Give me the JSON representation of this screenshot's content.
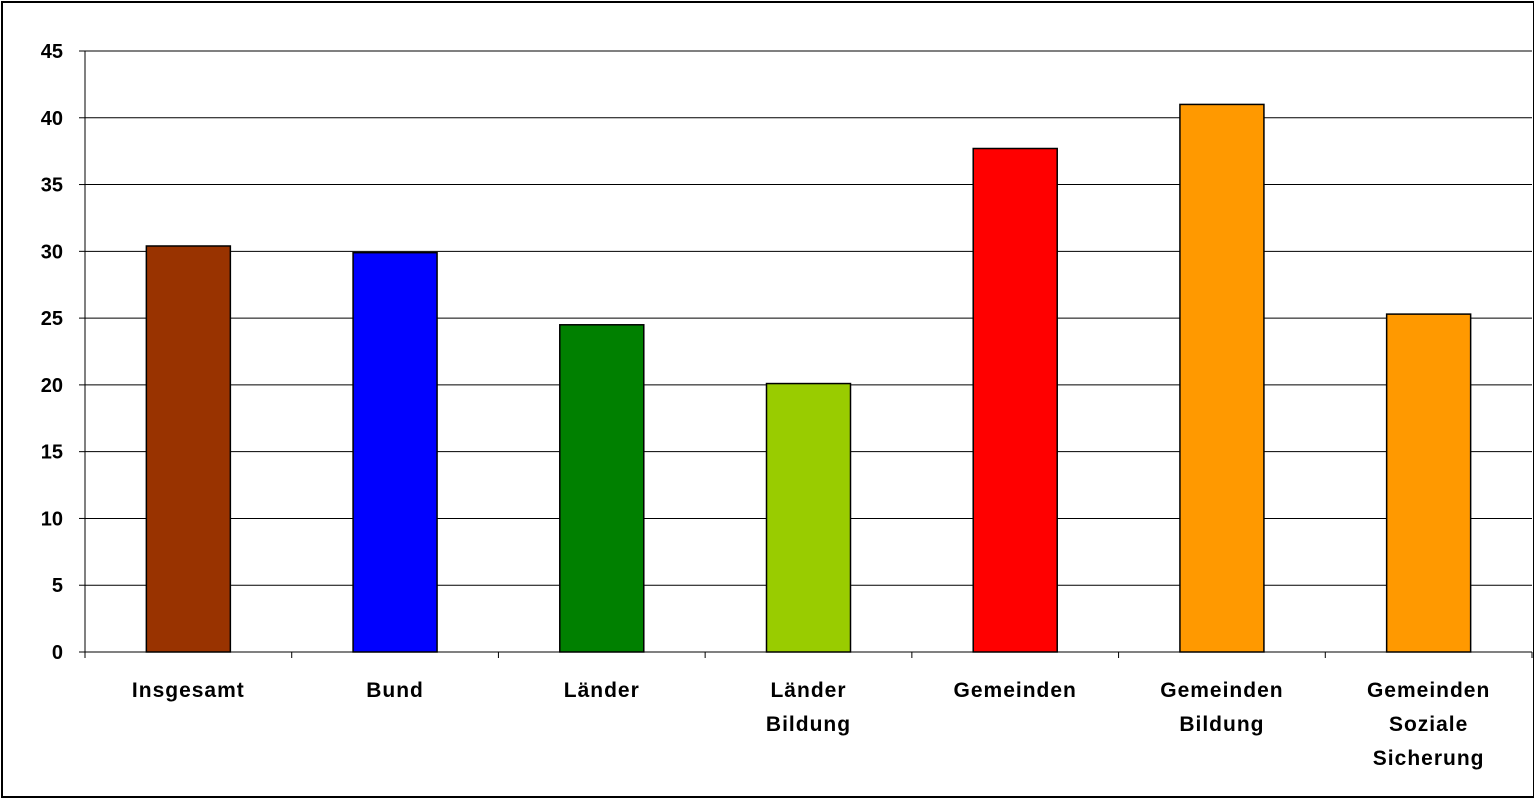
{
  "chart_data": {
    "type": "bar",
    "title": "",
    "xlabel": "",
    "ylabel": "",
    "ylim": [
      0,
      45
    ],
    "yticks": [
      0,
      5,
      10,
      15,
      20,
      25,
      30,
      35,
      40,
      45
    ],
    "grid": true,
    "legend": "none",
    "categories": [
      "Insgesamt",
      "Bund",
      "Länder",
      "Länder Bildung",
      "Gemeinden",
      "Gemeinden Bildung",
      "Gemeinden Soziale Sicherung"
    ],
    "category_lines": [
      [
        "Insgesamt"
      ],
      [
        "Bund"
      ],
      [
        "Länder"
      ],
      [
        "Länder",
        "Bildung"
      ],
      [
        "Gemeinden"
      ],
      [
        "Gemeinden",
        "Bildung"
      ],
      [
        "Gemeinden",
        "Soziale",
        "Sicherung"
      ]
    ],
    "values": [
      30.4,
      29.9,
      24.5,
      20.1,
      37.7,
      41.0,
      25.3
    ],
    "colors": [
      "#993300",
      "#0000ff",
      "#008000",
      "#99cc00",
      "#ff0000",
      "#ff9900",
      "#ff9900"
    ]
  }
}
